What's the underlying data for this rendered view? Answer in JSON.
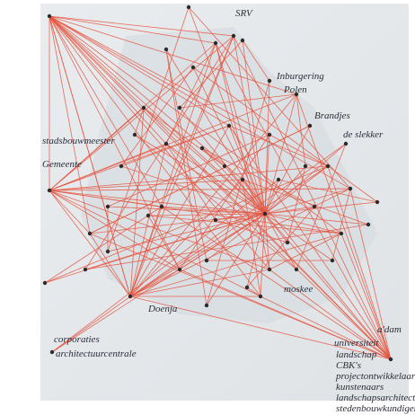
{
  "labels": [
    "SRV",
    "Inburgering",
    "Polen",
    "Brandjes",
    "de slekker",
    "stadsbouwmeester",
    "Gemeente",
    "moskee",
    "Doenja",
    "corporaties",
    "architectuurcentrale",
    "universiteit",
    "a'dam",
    "landschap",
    "CBK's",
    "projectontwikkelaar",
    "kunstenaars",
    "landschapsarchitecten",
    "stedenbouwkundigen"
  ]
}
